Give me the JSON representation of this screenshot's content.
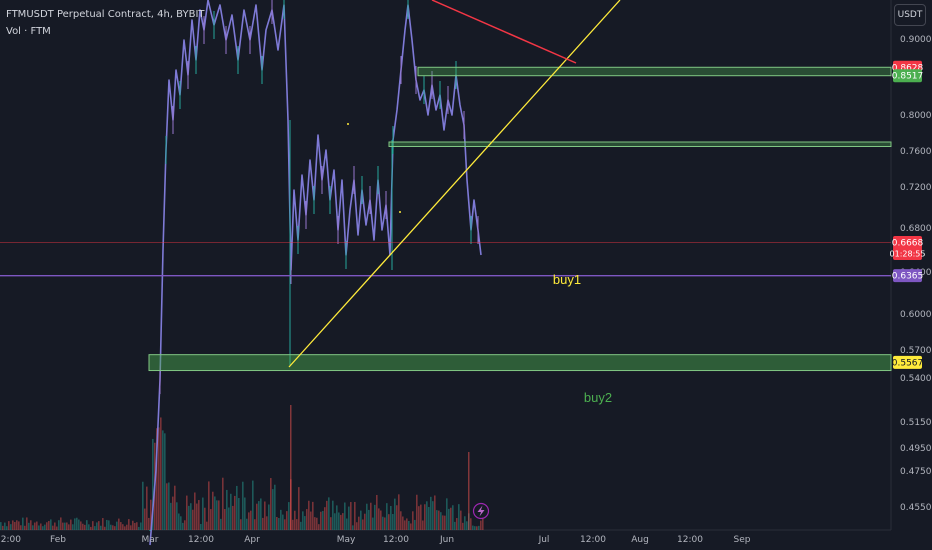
{
  "header": {
    "title": "FTMUSDT Perpetual Contract, 4h, BYBIT",
    "volume_label": "Vol · FTM",
    "currency": "USDT"
  },
  "chart_data": {
    "type": "candlestick",
    "symbol": "FTMUSDT",
    "interval": "4h",
    "exchange": "BYBIT",
    "y_axis": {
      "range": [
        0.44,
        0.95
      ],
      "ticks": [
        "0.9000",
        "0.8000",
        "0.7600",
        "0.7200",
        "0.6800",
        "0.6400",
        "0.6000",
        "0.5700",
        "0.5400",
        "0.5150",
        "0.4950",
        "0.4750",
        "0.4550"
      ]
    },
    "x_axis": {
      "ticks": [
        "12:00",
        "Feb",
        "Mar",
        "12:00",
        "Apr",
        "May",
        "12:00",
        "Jun",
        "Jul",
        "12:00",
        "Aug",
        "12:00",
        "Sep"
      ]
    },
    "price_tags": [
      {
        "label": "0.8628",
        "value": 0.8628,
        "color": "#f23645"
      },
      {
        "label": "0.8517",
        "value": 0.8517,
        "color": "#4caf50"
      },
      {
        "label": "0.6668",
        "value": 0.6668,
        "color": "#f23645"
      },
      {
        "label": "01:28:55",
        "value": 0.6568,
        "color": "#f23645"
      },
      {
        "label": "0.6365",
        "value": 0.6365,
        "color": "#7e57c2"
      },
      {
        "label": "0.5567",
        "value": 0.5567,
        "color": "#ffeb3b"
      }
    ],
    "zones": [
      {
        "name": "upper-zone",
        "top": 0.8628,
        "bottom": 0.8517,
        "color": "#4caf50"
      },
      {
        "name": "mid-zone",
        "top": 0.77,
        "bottom": 0.765,
        "color": "#4caf50"
      },
      {
        "name": "buy2-zone",
        "top": 0.565,
        "bottom": 0.548,
        "color": "#4caf50"
      }
    ],
    "horizontal_lines": [
      {
        "name": "current-price-line",
        "value": 0.6668,
        "color": "#f23645"
      },
      {
        "name": "buy1-line",
        "value": 0.6365,
        "color": "#7e57c2"
      }
    ],
    "annotations": [
      {
        "text": "buy1",
        "color": "#ffeb3b"
      },
      {
        "text": "buy2",
        "color": "#4caf50"
      }
    ]
  }
}
